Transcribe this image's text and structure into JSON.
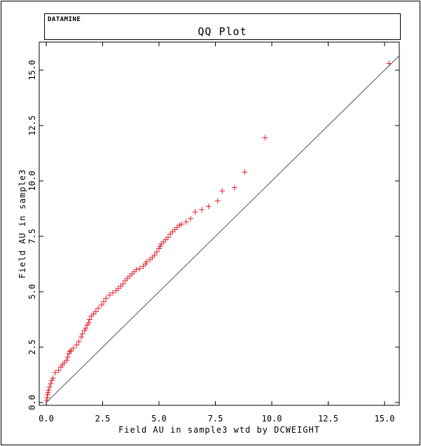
{
  "header": {
    "brand": "DATAMINE",
    "title": "QQ Plot"
  },
  "colors": {
    "marker": "#e0242c",
    "reference_line": "#555555",
    "frame": "#000000"
  },
  "chart_data": {
    "type": "scatter",
    "title": "QQ Plot",
    "xlabel": "Field AU in sample3 wtd by DCWEIGHT",
    "ylabel": "Field AU in sample3",
    "xlim": [
      0,
      15.5
    ],
    "ylim": [
      0,
      16
    ],
    "xticks": [
      0,
      2.5,
      5,
      7.5,
      10,
      12.5,
      15
    ],
    "yticks": [
      0,
      2.5,
      5,
      7.5,
      10,
      12.5,
      15
    ],
    "xtick_labels": [
      "0.0",
      "2.5",
      "5.0",
      "7.5",
      "10.0",
      "12.5",
      "15.0"
    ],
    "ytick_labels": [
      "0.0",
      "2.5",
      "5.0",
      "7.5",
      "10.0",
      "12.5",
      "15.0"
    ],
    "grid": false,
    "reference_line": "y = x",
    "marker": "+",
    "points": [
      [
        0.02,
        0.1
      ],
      [
        0.04,
        0.22
      ],
      [
        0.06,
        0.35
      ],
      [
        0.08,
        0.45
      ],
      [
        0.1,
        0.55
      ],
      [
        0.15,
        0.7
      ],
      [
        0.2,
        0.85
      ],
      [
        0.25,
        1.0
      ],
      [
        0.3,
        1.1
      ],
      [
        0.4,
        1.35
      ],
      [
        0.55,
        1.45
      ],
      [
        0.65,
        1.6
      ],
      [
        0.72,
        1.7
      ],
      [
        0.8,
        1.8
      ],
      [
        0.9,
        1.9
      ],
      [
        0.95,
        2.05
      ],
      [
        1.0,
        2.2
      ],
      [
        1.05,
        2.3
      ],
      [
        1.1,
        2.35
      ],
      [
        1.2,
        2.45
      ],
      [
        1.35,
        2.6
      ],
      [
        1.45,
        2.75
      ],
      [
        1.55,
        2.95
      ],
      [
        1.6,
        3.1
      ],
      [
        1.7,
        3.25
      ],
      [
        1.75,
        3.35
      ],
      [
        1.82,
        3.5
      ],
      [
        1.88,
        3.6
      ],
      [
        1.92,
        3.75
      ],
      [
        2.0,
        3.9
      ],
      [
        2.1,
        4.0
      ],
      [
        2.2,
        4.1
      ],
      [
        2.3,
        4.25
      ],
      [
        2.45,
        4.4
      ],
      [
        2.55,
        4.55
      ],
      [
        2.65,
        4.7
      ],
      [
        2.8,
        4.85
      ],
      [
        2.95,
        4.95
      ],
      [
        3.1,
        5.05
      ],
      [
        3.2,
        5.15
      ],
      [
        3.3,
        5.25
      ],
      [
        3.4,
        5.35
      ],
      [
        3.5,
        5.5
      ],
      [
        3.6,
        5.6
      ],
      [
        3.7,
        5.7
      ],
      [
        3.8,
        5.8
      ],
      [
        3.9,
        5.9
      ],
      [
        4.0,
        6.0
      ],
      [
        4.15,
        6.05
      ],
      [
        4.3,
        6.15
      ],
      [
        4.4,
        6.25
      ],
      [
        4.45,
        6.35
      ],
      [
        4.6,
        6.45
      ],
      [
        4.7,
        6.55
      ],
      [
        4.8,
        6.65
      ],
      [
        4.9,
        6.8
      ],
      [
        5.0,
        6.95
      ],
      [
        5.05,
        7.05
      ],
      [
        5.1,
        7.15
      ],
      [
        5.2,
        7.25
      ],
      [
        5.3,
        7.35
      ],
      [
        5.4,
        7.45
      ],
      [
        5.5,
        7.6
      ],
      [
        5.6,
        7.7
      ],
      [
        5.7,
        7.8
      ],
      [
        5.8,
        7.9
      ],
      [
        5.9,
        8.0
      ],
      [
        6.0,
        8.05
      ],
      [
        6.2,
        8.15
      ],
      [
        6.4,
        8.3
      ],
      [
        6.6,
        8.6
      ],
      [
        6.9,
        8.7
      ],
      [
        7.2,
        8.85
      ],
      [
        7.6,
        9.1
      ],
      [
        7.8,
        9.55
      ],
      [
        8.35,
        9.7
      ],
      [
        8.8,
        10.4
      ],
      [
        9.7,
        11.95
      ],
      [
        15.2,
        15.3
      ]
    ]
  }
}
